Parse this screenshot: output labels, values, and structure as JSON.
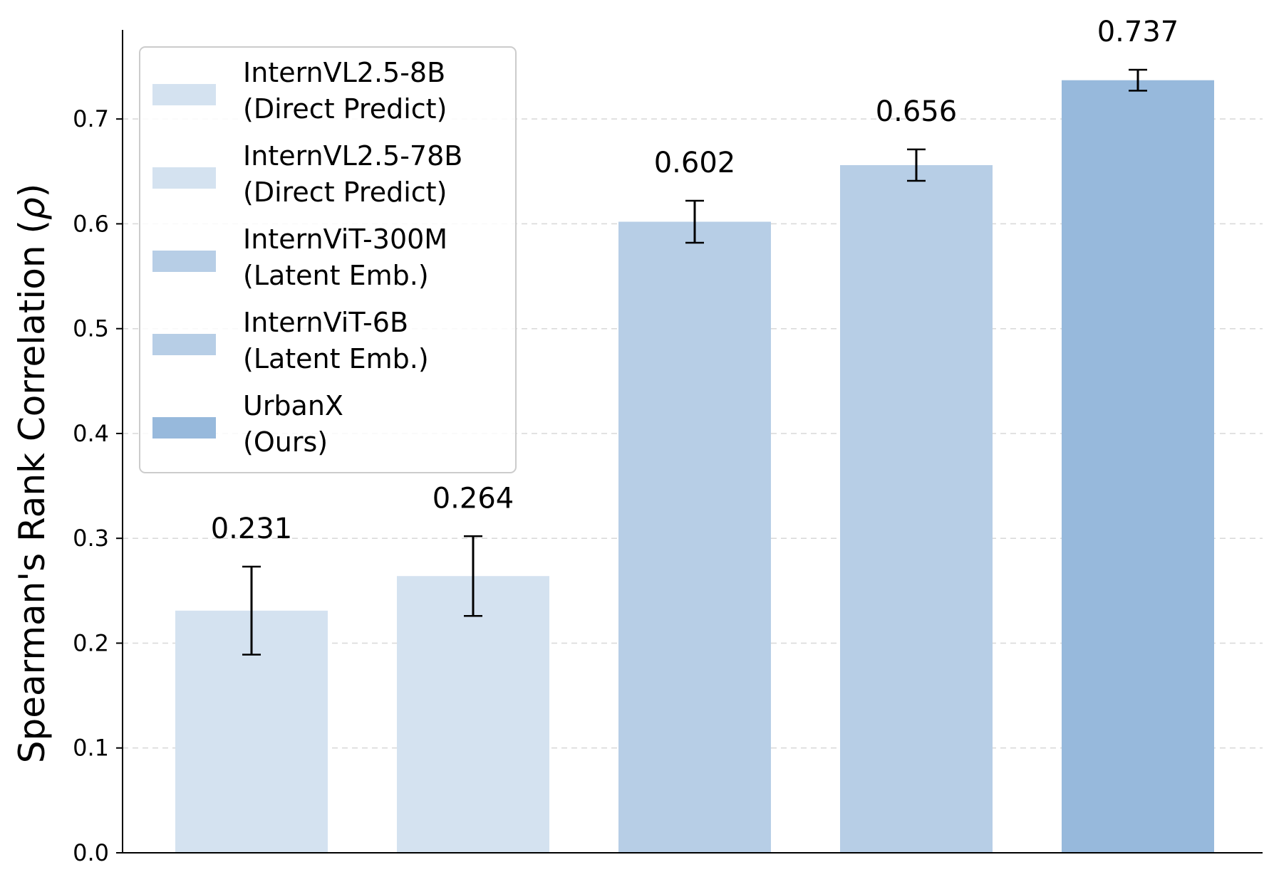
{
  "chart_data": {
    "type": "bar",
    "title": "",
    "xlabel": "",
    "ylabel_text": "Spearman's Rank Correlation (",
    "ylabel_symbol": "ρ",
    "ylabel_close": ")",
    "ylim": [
      0,
      0.785
    ],
    "yticks": [
      0.0,
      0.1,
      0.2,
      0.3,
      0.4,
      0.5,
      0.6,
      0.7
    ],
    "ytick_labels": [
      "0.0",
      "0.1",
      "0.2",
      "0.3",
      "0.4",
      "0.5",
      "0.6",
      "0.7"
    ],
    "grid": "horizontal dashed",
    "legend_position": "top-left",
    "series": [
      {
        "line1": "InternVL2.5-8B",
        "line2": "(Direct Predict)",
        "value": 0.231,
        "value_label": "0.231",
        "err_low": 0.189,
        "err_high": 0.273,
        "color": "#d4e2f0"
      },
      {
        "line1": "InternVL2.5-78B",
        "line2": "(Direct Predict)",
        "value": 0.264,
        "value_label": "0.264",
        "err_low": 0.226,
        "err_high": 0.302,
        "color": "#d4e2f0"
      },
      {
        "line1": "InternViT-300M",
        "line2": "(Latent Emb.)",
        "value": 0.602,
        "value_label": "0.602",
        "err_low": 0.582,
        "err_high": 0.622,
        "color": "#b7cee6"
      },
      {
        "line1": "InternViT-6B",
        "line2": "(Latent Emb.)",
        "value": 0.656,
        "value_label": "0.656",
        "err_low": 0.641,
        "err_high": 0.671,
        "color": "#b7cee6"
      },
      {
        "line1": "UrbanX",
        "line2": "(Ours)",
        "value": 0.737,
        "value_label": "0.737",
        "err_low": 0.727,
        "err_high": 0.747,
        "color": "#97b9dc"
      }
    ]
  }
}
